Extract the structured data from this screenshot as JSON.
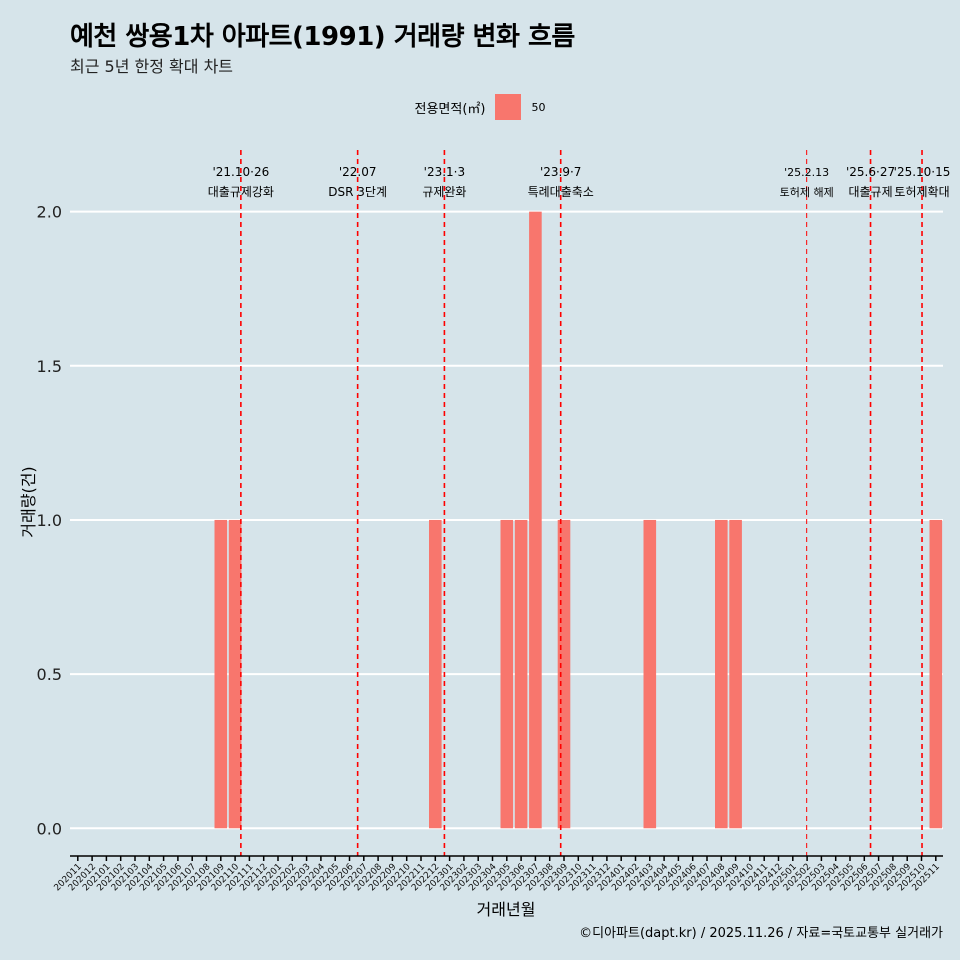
{
  "title": "예천 쌍용1차 아파트(1991) 거래량 변화 흐름",
  "subtitle": "최근 5년 한정 확대 차트",
  "legend": {
    "title": "전용면적(㎡)",
    "label": "50"
  },
  "caption": "©디아파트(dapt.kr) / 2025.11.26 / 자료=국토교통부 실거래가",
  "colors": {
    "background": "#d6e4ea",
    "bar": "#f8766d",
    "event_line": "#ff0000",
    "grid": "#ffffff"
  },
  "chart_data": {
    "type": "bar",
    "xlabel": "거래년월",
    "ylabel": "거래량(건)",
    "ylim": [
      -0.09,
      2.2
    ],
    "yticks": [
      "0.0",
      "0.5",
      "1.0",
      "1.5",
      "2.0"
    ],
    "categories": [
      "202011",
      "202012",
      "202101",
      "202102",
      "202103",
      "202104",
      "202105",
      "202106",
      "202107",
      "202108",
      "202109",
      "202110",
      "202111",
      "202112",
      "202201",
      "202202",
      "202203",
      "202204",
      "202205",
      "202206",
      "202207",
      "202208",
      "202209",
      "202210",
      "202211",
      "202212",
      "202301",
      "202302",
      "202303",
      "202304",
      "202305",
      "202306",
      "202307",
      "202308",
      "202309",
      "202310",
      "202311",
      "202312",
      "202401",
      "202402",
      "202403",
      "202404",
      "202405",
      "202406",
      "202407",
      "202408",
      "202409",
      "202410",
      "202411",
      "202412",
      "202501",
      "202502",
      "202503",
      "202504",
      "202505",
      "202506",
      "202507",
      "202508",
      "202509",
      "202510",
      "202511"
    ],
    "series": [
      {
        "name": "50",
        "values": [
          0,
          0,
          0,
          0,
          0,
          0,
          0,
          0,
          0,
          0,
          1,
          1,
          0,
          0,
          0,
          0,
          0,
          0,
          0,
          0,
          0,
          0,
          0,
          0,
          0,
          1,
          0,
          0,
          0,
          0,
          1,
          1,
          2,
          0,
          1,
          0,
          0,
          0,
          0,
          0,
          1,
          0,
          0,
          0,
          0,
          1,
          1,
          0,
          0,
          0,
          0,
          0,
          0,
          0,
          0,
          0,
          0,
          0,
          0,
          0,
          1
        ]
      }
    ],
    "events": [
      {
        "date": "'21.10·26",
        "label": "대출규제강화",
        "month": "202110",
        "day": 26
      },
      {
        "date": "'22.07",
        "label": "DSR 3단계",
        "month": "202207",
        "day": 1
      },
      {
        "date": "'23.1·3",
        "label": "규제완화",
        "month": "202301",
        "day": 3
      },
      {
        "date": "'23.9·7",
        "label": "특례대출축소",
        "month": "202309",
        "day": 7
      },
      {
        "date": "'25.2.13",
        "label": "토허제 해제",
        "month": "202502",
        "day": 13,
        "small": true
      },
      {
        "date": "'25.6·27",
        "label": "대출규제",
        "month": "202506",
        "day": 27
      },
      {
        "date": "'25.10·15",
        "label": "토허제확대",
        "month": "202510",
        "day": 15
      }
    ]
  }
}
